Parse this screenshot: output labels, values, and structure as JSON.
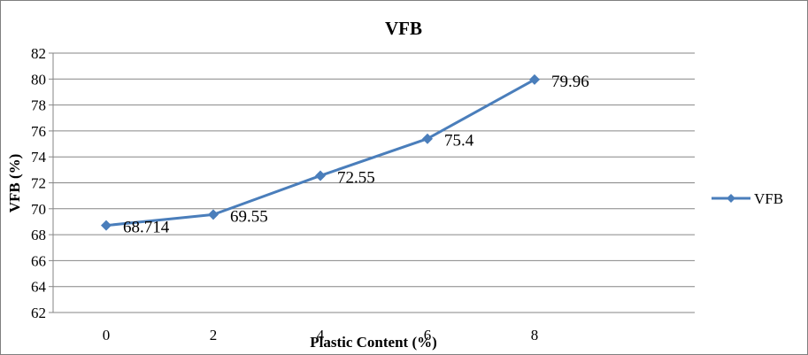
{
  "chart_data": {
    "type": "line",
    "title": "VFB",
    "xlabel": "Plastic  Content (%)",
    "ylabel": "VFB  (%)",
    "categories": [
      "0",
      "2",
      "4",
      "6",
      "8"
    ],
    "series": [
      {
        "name": "VFB",
        "values": [
          68.714,
          69.55,
          72.55,
          75.4,
          79.96
        ],
        "data_labels": [
          "68.714",
          "69.55",
          "72.55",
          "75.4",
          "79.96"
        ]
      }
    ],
    "ylim": [
      62,
      82
    ],
    "yticks": [
      "62",
      "64",
      "66",
      "68",
      "70",
      "72",
      "74",
      "76",
      "78",
      "80",
      "82"
    ],
    "grid": true,
    "legend": "right",
    "colors": {
      "series": "#4a7ebb",
      "grid": "#868686",
      "axis": "#868686",
      "text": "#000000"
    }
  }
}
